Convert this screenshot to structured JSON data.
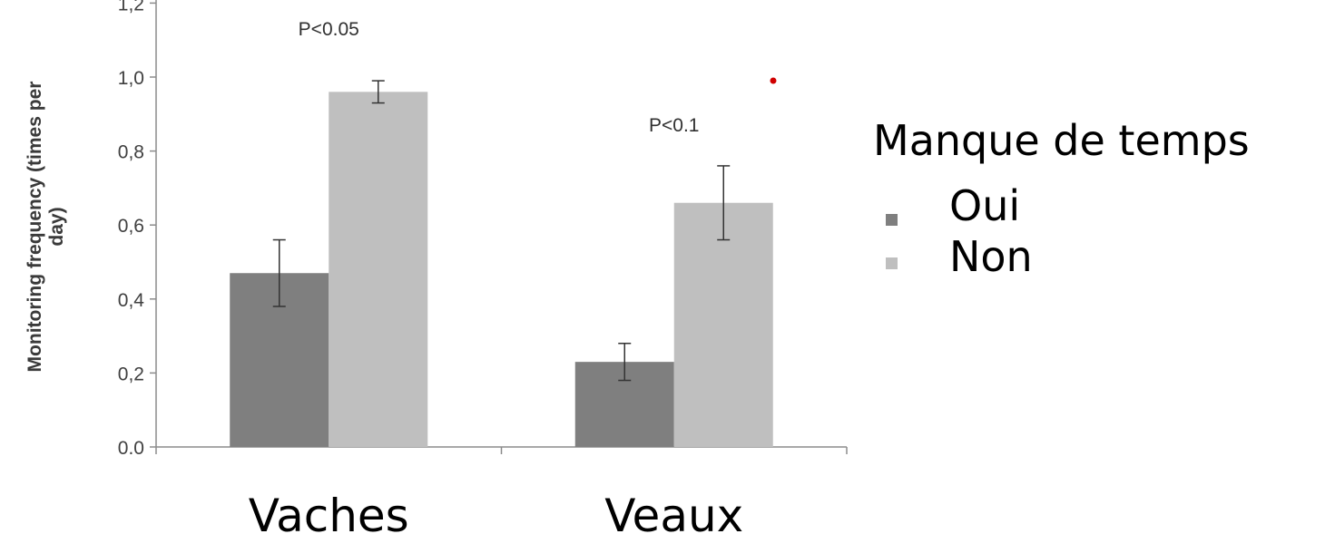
{
  "chart_data": {
    "type": "bar",
    "ylabel_line1": "Monitoring frequency (times per",
    "ylabel_line2": "day)",
    "ylim": [
      0,
      1.2
    ],
    "yticks": [
      {
        "value": 0.0,
        "label": "0.0"
      },
      {
        "value": 0.2,
        "label": "0,2"
      },
      {
        "value": 0.4,
        "label": "0,4"
      },
      {
        "value": 0.6,
        "label": "0,6"
      },
      {
        "value": 0.8,
        "label": "0,8"
      },
      {
        "value": 1.0,
        "label": "1,0"
      },
      {
        "value": 1.2,
        "label": "1,2"
      }
    ],
    "categories": [
      "Vaches",
      "Veaux"
    ],
    "series": [
      {
        "name": "Oui",
        "color": "#7f7f7f",
        "values": [
          0.47,
          0.23
        ],
        "err_low": [
          0.38,
          0.18
        ],
        "err_high": [
          0.56,
          0.28
        ]
      },
      {
        "name": "Non",
        "color": "#bfbfbf",
        "values": [
          0.96,
          0.66
        ],
        "err_low": [
          0.93,
          0.56
        ],
        "err_high": [
          0.99,
          0.76
        ]
      }
    ],
    "annotations": [
      {
        "category": 0,
        "text": "P<0.05",
        "value": 1.13
      },
      {
        "category": 1,
        "text": "P<0.1",
        "value": 0.87
      }
    ],
    "legend_title": "Manque de temps",
    "grid": false,
    "legend_position": "right"
  },
  "marker_color": "#d00000"
}
